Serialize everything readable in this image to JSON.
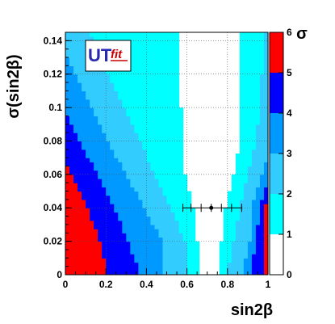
{
  "chart_data": {
    "type": "heatmap",
    "xlabel": "sin2β",
    "ylabel": "σ(sin2β)",
    "colorbar_label": "σ",
    "xlim": [
      0,
      1
    ],
    "ylim": [
      0,
      0.145
    ],
    "x_ticks": [
      "0",
      "0.2",
      "0.4",
      "0.6",
      "0.8",
      "1"
    ],
    "x_tick_values": [
      0,
      0.2,
      0.4,
      0.6,
      0.8,
      1.0
    ],
    "y_ticks": [
      "0",
      "0.02",
      "0.04",
      "0.06",
      "0.08",
      "0.1",
      "0.12",
      "0.14"
    ],
    "y_tick_values": [
      0,
      0.02,
      0.04,
      0.06,
      0.08,
      0.1,
      0.12,
      0.14
    ],
    "colorbar_ticks": [
      "0",
      "1",
      "2",
      "3",
      "4",
      "5",
      "6"
    ],
    "colorbar_tick_values": [
      0,
      1,
      2,
      3,
      4,
      5,
      6
    ],
    "bands": [
      {
        "sigma_range": [
          0,
          1
        ],
        "color": "#ffffff"
      },
      {
        "sigma_range": [
          1,
          2
        ],
        "color": "#00ffff"
      },
      {
        "sigma_range": [
          2,
          3
        ],
        "color": "#33ccff"
      },
      {
        "sigma_range": [
          3,
          4
        ],
        "color": "#0099ff"
      },
      {
        "sigma_range": [
          4,
          5
        ],
        "color": "#0000ff"
      },
      {
        "sigma_range": [
          5,
          6
        ],
        "color": "#ff0000"
      }
    ],
    "center_x": 0.72,
    "contour_boundaries": [
      {
        "y": 0.001,
        "left": [
          0.21,
          0.37,
          0.49,
          0.6,
          0.66
        ],
        "right": [
          0.75,
          0.8,
          0.87,
          0.91,
          0.99
        ]
      },
      {
        "y": 0.02,
        "left": [
          0.17,
          0.31,
          0.48,
          0.59,
          0.65
        ],
        "right": [
          0.77,
          0.83,
          0.91,
          0.94,
          0.98
        ]
      },
      {
        "y": 0.04,
        "left": [
          0.11,
          0.24,
          0.39,
          0.52,
          0.63
        ],
        "right": [
          0.79,
          0.86,
          0.92,
          0.96,
          0.98
        ]
      },
      {
        "y": 0.06,
        "left": [
          0.03,
          0.16,
          0.3,
          0.44,
          0.59
        ],
        "right": [
          0.83,
          0.9,
          0.97,
          1.01,
          1.05
        ]
      },
      {
        "y": 0.08,
        "left": [
          -0.05,
          0.07,
          0.21,
          0.37,
          0.58
        ],
        "right": [
          0.86,
          0.94,
          1.02,
          1.1,
          1.15
        ]
      },
      {
        "y": 0.1,
        "left": [
          -0.13,
          -0.01,
          0.13,
          0.29,
          0.57
        ],
        "right": [
          0.87,
          0.96,
          1.07,
          1.17,
          1.25
        ]
      },
      {
        "y": 0.12,
        "left": [
          -0.2,
          -0.09,
          0.05,
          0.21,
          0.57
        ],
        "right": [
          0.86,
          0.97,
          1.1,
          1.22,
          1.33
        ]
      },
      {
        "y": 0.145,
        "left": [
          -0.28,
          -0.18,
          -0.04,
          0.12,
          0.57
        ],
        "right": [
          0.86,
          0.98,
          1.13,
          1.28,
          1.42
        ]
      }
    ],
    "measurement": {
      "y": 0.04,
      "central": 0.72,
      "error_bar_ticks": [
        0.58,
        0.62,
        0.67,
        0.72,
        0.77,
        0.82,
        0.87
      ]
    }
  },
  "logo": {
    "text_main": "UT",
    "text_sub": "fit"
  }
}
